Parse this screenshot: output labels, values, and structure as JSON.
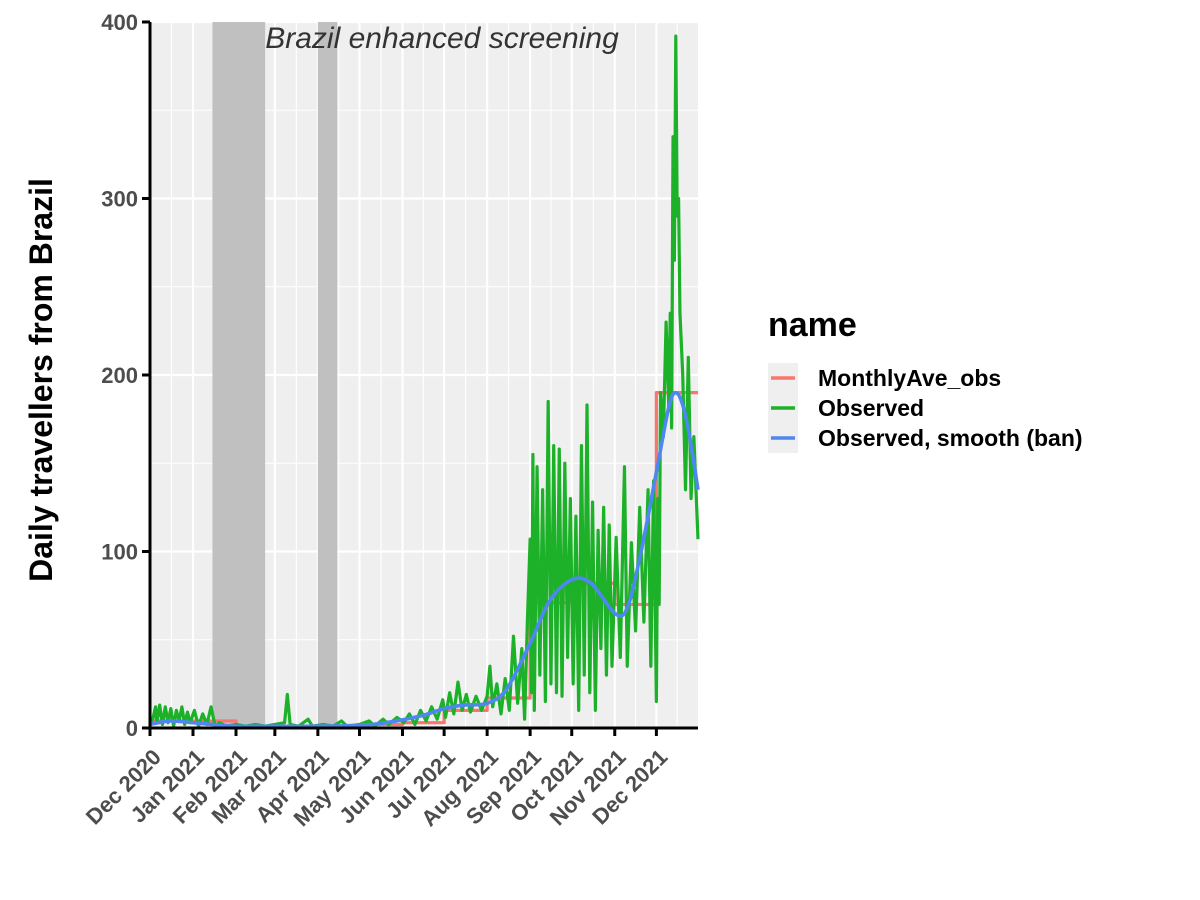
{
  "chart_data": {
    "type": "line",
    "ylabel": "Daily travellers from Brazil",
    "xlabel": "",
    "ylim": [
      0,
      400
    ],
    "y_ticks": [
      0,
      100,
      200,
      300,
      400
    ],
    "xlim": [
      "2020-12-01",
      "2021-12-31"
    ],
    "x_ticks": [
      {
        "date": "2020-12-01",
        "label": "Dec 2020"
      },
      {
        "date": "2021-01-01",
        "label": "Jan 2021"
      },
      {
        "date": "2021-02-01",
        "label": "Feb 2021"
      },
      {
        "date": "2021-03-01",
        "label": "Mar 2021"
      },
      {
        "date": "2021-04-01",
        "label": "Apr 2021"
      },
      {
        "date": "2021-05-01",
        "label": "May 2021"
      },
      {
        "date": "2021-06-01",
        "label": "Jun 2021"
      },
      {
        "date": "2021-07-01",
        "label": "Jul 2021"
      },
      {
        "date": "2021-08-01",
        "label": "Aug 2021"
      },
      {
        "date": "2021-09-01",
        "label": "Sep 2021"
      },
      {
        "date": "2021-10-01",
        "label": "Oct 2021"
      },
      {
        "date": "2021-11-01",
        "label": "Nov 2021"
      },
      {
        "date": "2021-12-01",
        "label": "Dec 2021"
      }
    ],
    "annotation": "Brazil enhanced screening",
    "shaded_periods": [
      {
        "start": "2021-01-15",
        "end": "2021-02-22"
      },
      {
        "start": "2021-04-01",
        "end": "2021-04-15"
      }
    ],
    "legend": {
      "title": "name",
      "position": "right"
    },
    "grid": true,
    "series": [
      {
        "name": "MonthlyAve_obs",
        "color": "#f8766d",
        "style": "step",
        "points": [
          [
            "2020-12-01",
            4
          ],
          [
            "2021-01-01",
            4
          ],
          [
            "2021-02-01",
            1
          ],
          [
            "2021-03-01",
            1
          ],
          [
            "2021-04-01",
            1
          ],
          [
            "2021-05-01",
            2
          ],
          [
            "2021-06-01",
            3
          ],
          [
            "2021-07-01",
            10
          ],
          [
            "2021-08-01",
            17
          ],
          [
            "2021-09-01",
            71
          ],
          [
            "2021-10-01",
            82
          ],
          [
            "2021-11-01",
            70
          ],
          [
            "2021-12-01",
            190
          ],
          [
            "2021-12-31",
            190
          ]
        ]
      },
      {
        "name": "Observed",
        "color": "#1cb128",
        "points": [
          [
            "2020-12-01",
            2
          ],
          [
            "2020-12-03",
            5
          ],
          [
            "2020-12-05",
            12
          ],
          [
            "2020-12-06",
            3
          ],
          [
            "2020-12-08",
            13
          ],
          [
            "2020-12-10",
            2
          ],
          [
            "2020-12-12",
            12
          ],
          [
            "2020-12-14",
            3
          ],
          [
            "2020-12-16",
            11
          ],
          [
            "2020-12-18",
            1
          ],
          [
            "2020-12-20",
            10
          ],
          [
            "2020-12-22",
            4
          ],
          [
            "2020-12-24",
            12
          ],
          [
            "2020-12-26",
            2
          ],
          [
            "2020-12-28",
            9
          ],
          [
            "2020-12-30",
            3
          ],
          [
            "2021-01-02",
            10
          ],
          [
            "2021-01-05",
            1
          ],
          [
            "2021-01-08",
            8
          ],
          [
            "2021-01-11",
            2
          ],
          [
            "2021-01-14",
            12
          ],
          [
            "2021-01-17",
            1
          ],
          [
            "2021-01-20",
            3
          ],
          [
            "2021-01-25",
            1
          ],
          [
            "2021-02-01",
            2
          ],
          [
            "2021-02-08",
            1
          ],
          [
            "2021-02-15",
            2
          ],
          [
            "2021-02-22",
            1
          ],
          [
            "2021-03-01",
            2
          ],
          [
            "2021-03-08",
            3
          ],
          [
            "2021-03-10",
            19
          ],
          [
            "2021-03-12",
            2
          ],
          [
            "2021-03-18",
            1
          ],
          [
            "2021-03-25",
            5
          ],
          [
            "2021-03-28",
            1
          ],
          [
            "2021-04-05",
            2
          ],
          [
            "2021-04-12",
            1
          ],
          [
            "2021-04-18",
            4
          ],
          [
            "2021-04-22",
            1
          ],
          [
            "2021-05-01",
            2
          ],
          [
            "2021-05-08",
            4
          ],
          [
            "2021-05-12",
            1
          ],
          [
            "2021-05-18",
            5
          ],
          [
            "2021-05-22",
            2
          ],
          [
            "2021-05-28",
            6
          ],
          [
            "2021-06-02",
            3
          ],
          [
            "2021-06-06",
            8
          ],
          [
            "2021-06-10",
            2
          ],
          [
            "2021-06-14",
            10
          ],
          [
            "2021-06-18",
            4
          ],
          [
            "2021-06-22",
            12
          ],
          [
            "2021-06-26",
            5
          ],
          [
            "2021-06-30",
            16
          ],
          [
            "2021-07-02",
            6
          ],
          [
            "2021-07-05",
            20
          ],
          [
            "2021-07-08",
            8
          ],
          [
            "2021-07-11",
            26
          ],
          [
            "2021-07-14",
            10
          ],
          [
            "2021-07-17",
            19
          ],
          [
            "2021-07-20",
            9
          ],
          [
            "2021-07-24",
            18
          ],
          [
            "2021-07-28",
            10
          ],
          [
            "2021-08-01",
            18
          ],
          [
            "2021-08-03",
            35
          ],
          [
            "2021-08-05",
            12
          ],
          [
            "2021-08-08",
            25
          ],
          [
            "2021-08-11",
            8
          ],
          [
            "2021-08-14",
            28
          ],
          [
            "2021-08-17",
            10
          ],
          [
            "2021-08-20",
            52
          ],
          [
            "2021-08-23",
            14
          ],
          [
            "2021-08-26",
            45
          ],
          [
            "2021-08-28",
            5
          ],
          [
            "2021-08-30",
            60
          ],
          [
            "2021-09-01",
            107
          ],
          [
            "2021-09-02",
            20
          ],
          [
            "2021-09-03",
            155
          ],
          [
            "2021-09-04",
            10
          ],
          [
            "2021-09-06",
            148
          ],
          [
            "2021-09-08",
            30
          ],
          [
            "2021-09-10",
            135
          ],
          [
            "2021-09-12",
            15
          ],
          [
            "2021-09-14",
            185
          ],
          [
            "2021-09-16",
            25
          ],
          [
            "2021-09-18",
            160
          ],
          [
            "2021-09-20",
            20
          ],
          [
            "2021-09-22",
            158
          ],
          [
            "2021-09-24",
            18
          ],
          [
            "2021-09-26",
            150
          ],
          [
            "2021-09-28",
            40
          ],
          [
            "2021-09-30",
            130
          ],
          [
            "2021-10-02",
            25
          ],
          [
            "2021-10-04",
            120
          ],
          [
            "2021-10-06",
            10
          ],
          [
            "2021-10-08",
            160
          ],
          [
            "2021-10-10",
            30
          ],
          [
            "2021-10-12",
            183
          ],
          [
            "2021-10-14",
            20
          ],
          [
            "2021-10-16",
            128
          ],
          [
            "2021-10-18",
            10
          ],
          [
            "2021-10-20",
            112
          ],
          [
            "2021-10-22",
            45
          ],
          [
            "2021-10-24",
            125
          ],
          [
            "2021-10-26",
            30
          ],
          [
            "2021-10-28",
            115
          ],
          [
            "2021-10-30",
            35
          ],
          [
            "2021-11-02",
            108
          ],
          [
            "2021-11-05",
            40
          ],
          [
            "2021-11-08",
            148
          ],
          [
            "2021-11-10",
            35
          ],
          [
            "2021-11-13",
            105
          ],
          [
            "2021-11-16",
            55
          ],
          [
            "2021-11-19",
            125
          ],
          [
            "2021-11-22",
            60
          ],
          [
            "2021-11-25",
            135
          ],
          [
            "2021-11-27",
            35
          ],
          [
            "2021-11-29",
            140
          ],
          [
            "2021-12-01",
            15
          ],
          [
            "2021-12-02",
            130
          ],
          [
            "2021-12-03",
            70
          ],
          [
            "2021-12-04",
            190
          ],
          [
            "2021-12-06",
            165
          ],
          [
            "2021-12-08",
            230
          ],
          [
            "2021-12-10",
            180
          ],
          [
            "2021-12-11",
            235
          ],
          [
            "2021-12-12",
            170
          ],
          [
            "2021-12-13",
            335
          ],
          [
            "2021-12-14",
            265
          ],
          [
            "2021-12-15",
            392
          ],
          [
            "2021-12-16",
            290
          ],
          [
            "2021-12-17",
            300
          ],
          [
            "2021-12-18",
            235
          ],
          [
            "2021-12-20",
            200
          ],
          [
            "2021-12-22",
            135
          ],
          [
            "2021-12-24",
            210
          ],
          [
            "2021-12-26",
            130
          ],
          [
            "2021-12-28",
            165
          ],
          [
            "2021-12-31",
            107
          ]
        ]
      },
      {
        "name": "Observed, smooth (ban)",
        "color": "#4f87f0",
        "style": "smooth",
        "points": [
          [
            "2020-12-01",
            2
          ],
          [
            "2020-12-15",
            4
          ],
          [
            "2021-01-01",
            3
          ],
          [
            "2021-01-15",
            2
          ],
          [
            "2021-02-01",
            1
          ],
          [
            "2021-03-01",
            1
          ],
          [
            "2021-04-01",
            1
          ],
          [
            "2021-05-01",
            1.5
          ],
          [
            "2021-05-20",
            3
          ],
          [
            "2021-06-15",
            7
          ],
          [
            "2021-07-01",
            11
          ],
          [
            "2021-07-15",
            13
          ],
          [
            "2021-08-01",
            14
          ],
          [
            "2021-08-15",
            22
          ],
          [
            "2021-09-01",
            48
          ],
          [
            "2021-09-15",
            72
          ],
          [
            "2021-10-01",
            84
          ],
          [
            "2021-10-15",
            82
          ],
          [
            "2021-11-01",
            65
          ],
          [
            "2021-11-10",
            68
          ],
          [
            "2021-11-20",
            100
          ],
          [
            "2021-12-01",
            145
          ],
          [
            "2021-12-10",
            182
          ],
          [
            "2021-12-15",
            190
          ],
          [
            "2021-12-20",
            183
          ],
          [
            "2021-12-25",
            165
          ],
          [
            "2021-12-31",
            135
          ]
        ]
      }
    ]
  }
}
